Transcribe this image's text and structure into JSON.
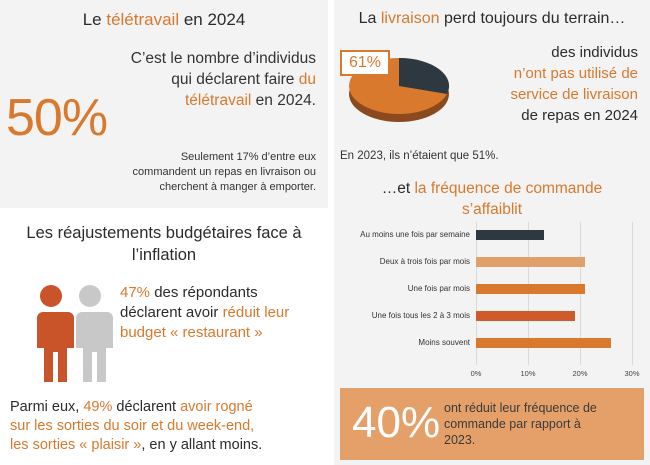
{
  "colors": {
    "accent": "#d8792e",
    "dark_bar": "#2e3840",
    "light_bar": "#e0a06a",
    "mid_bar": "#d8792e",
    "deep_bar": "#cf5a2c",
    "person_orange": "#c9542a",
    "person_grey": "#c8c8c8"
  },
  "telework": {
    "title_pre": "Le",
    "title_accent": "télétravail",
    "title_post": "en 2024",
    "percent": "50%",
    "line1": "C’est le nombre d’individus",
    "line2_pre": "qui déclarent faire",
    "line2_accent": "du",
    "line3_accent": "télétravail",
    "line3_post": "en 2024.",
    "note_line1": "Seulement 17% d’entre eux",
    "note_line2": "commandent un repas en livraison ou",
    "note_line3": "cherchent à manger à emporter."
  },
  "delivery": {
    "title_pre": "La",
    "title_accent": "livraison",
    "title_post": "perd toujours du terrain…",
    "pie_label": "61%",
    "pie_value": 61,
    "line1": "des individus",
    "line2_accent": "n’ont pas utilisé de",
    "line3_accent": "service de livraison",
    "line4": "de repas en 2024",
    "note": "En 2023, ils n’étaient que 51%.",
    "subtitle_pre": "…et",
    "subtitle_accent_1": "la fréquence de commande",
    "subtitle_accent_2": "s’affaiblit"
  },
  "chart_data": {
    "type": "bar",
    "orientation": "horizontal",
    "categories": [
      "Au moins une fois par semaine",
      "Deux à trois fois par mois",
      "Une fois par mois",
      "Une fois tous les 2 à 3 mois",
      "Moins souvent"
    ],
    "values": [
      13,
      21,
      21,
      19,
      26
    ],
    "xlim": [
      0,
      30
    ],
    "xticks": [
      "0%",
      "10%",
      "20%",
      "30%"
    ],
    "grid": true
  },
  "frequency_drop": {
    "percent": "40%",
    "line1": "ont réduit leur fréquence de",
    "line2": "commande par rapport à",
    "line3": "2023."
  },
  "budget": {
    "title_line1": "Les réajustements budgétaires face à",
    "title_line2": "l’inflation",
    "pct": "47%",
    "line1_post": "des répondants",
    "line2_pre": "déclarent avoir",
    "line2_accent": "réduit leur",
    "line3_accent": "budget « restaurant »",
    "para_line1_pre": "Parmi eux,",
    "para_line1_pct": "49%",
    "para_line1_mid": "déclarent",
    "para_line1_accent": "avoir rogné",
    "para_line2_accent": "sur les sorties du soir et du week-end,",
    "para_line3_accent": "les sorties « plaisir »",
    "para_line3_post": ", en y allant moins."
  }
}
